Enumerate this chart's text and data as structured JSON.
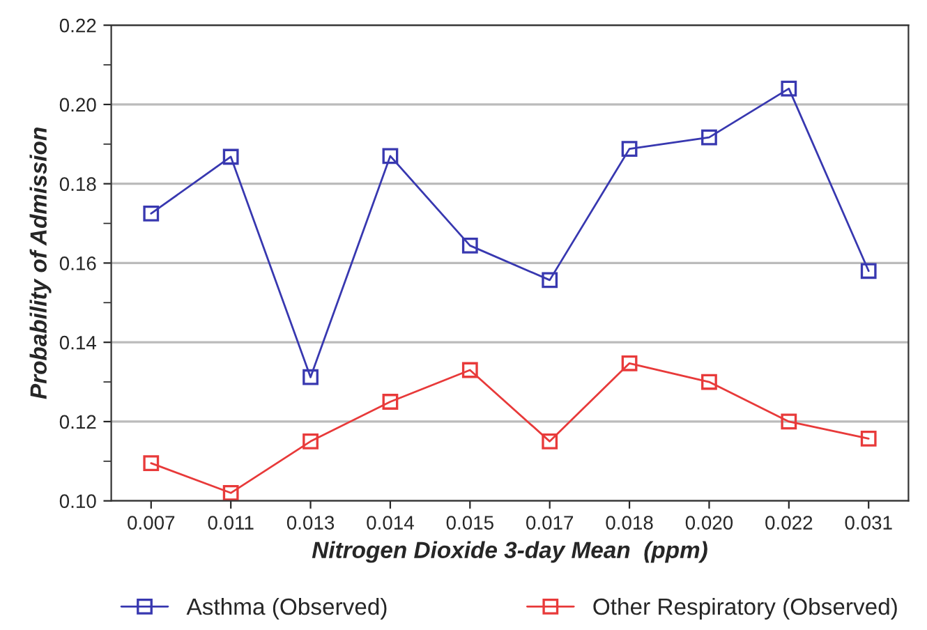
{
  "chart_data": {
    "type": "line",
    "xlabel": "Nitrogen Dioxide 3-day Mean  (ppm)",
    "ylabel": "Probability of Admission",
    "categories": [
      "0.007",
      "0.011",
      "0.013",
      "0.014",
      "0.015",
      "0.017",
      "0.018",
      "0.020",
      "0.022",
      "0.031"
    ],
    "series": [
      {
        "name": "Asthma (Observed)",
        "color": "#3838b0",
        "values": [
          0.1725,
          0.1868,
          0.1312,
          0.187,
          0.1644,
          0.1557,
          0.1888,
          0.1917,
          0.204,
          0.158
        ]
      },
      {
        "name": "Other Respiratory (Observed)",
        "color": "#e83a3a",
        "values": [
          0.1095,
          0.102,
          0.115,
          0.125,
          0.133,
          0.115,
          0.1347,
          0.13,
          0.12,
          0.1157
        ]
      }
    ],
    "ylim": [
      0.1,
      0.22
    ],
    "yticks": [
      {
        "value": 0.1,
        "label": "0.10"
      },
      {
        "value": 0.12,
        "label": "0.12"
      },
      {
        "value": 0.14,
        "label": "0.14"
      },
      {
        "value": 0.16,
        "label": "0.16"
      },
      {
        "value": 0.18,
        "label": "0.18"
      },
      {
        "value": 0.2,
        "label": "0.20"
      },
      {
        "value": 0.22,
        "label": "0.22"
      }
    ],
    "grid": "y",
    "legend": "bottom",
    "marker": "square",
    "line_style": "solid"
  }
}
